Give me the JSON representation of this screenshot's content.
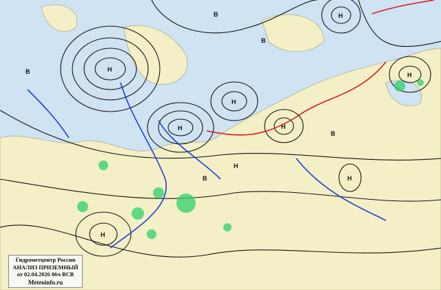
{
  "legend": {
    "org": "Гидрометцентр России",
    "title": "АНАЛИЗ ПРИЗЕМНЫЙ",
    "date": "от 02.04.2026 06ч ВСВ",
    "site": "Meteoinfo.ru"
  },
  "colors": {
    "land": "#f4efc6",
    "sea": "#cfe3f2",
    "isobar": "#111111",
    "cold_front": "#1a3fd6",
    "warm_front": "#d61a1a",
    "precip": "#2fd06a"
  },
  "pressure_centers": [
    {
      "type": "low",
      "label": "Н"
    },
    {
      "type": "low",
      "label": "Н"
    },
    {
      "type": "low",
      "label": "Н"
    },
    {
      "type": "low",
      "label": "Н"
    },
    {
      "type": "low",
      "label": "Н"
    },
    {
      "type": "low",
      "label": "Н"
    },
    {
      "type": "low",
      "label": "Н"
    },
    {
      "type": "low",
      "label": "Н"
    },
    {
      "type": "low",
      "label": "Н"
    },
    {
      "type": "high",
      "label": "В"
    },
    {
      "type": "high",
      "label": "В"
    },
    {
      "type": "high",
      "label": "В"
    },
    {
      "type": "high",
      "label": "В"
    },
    {
      "type": "high",
      "label": "В"
    }
  ]
}
